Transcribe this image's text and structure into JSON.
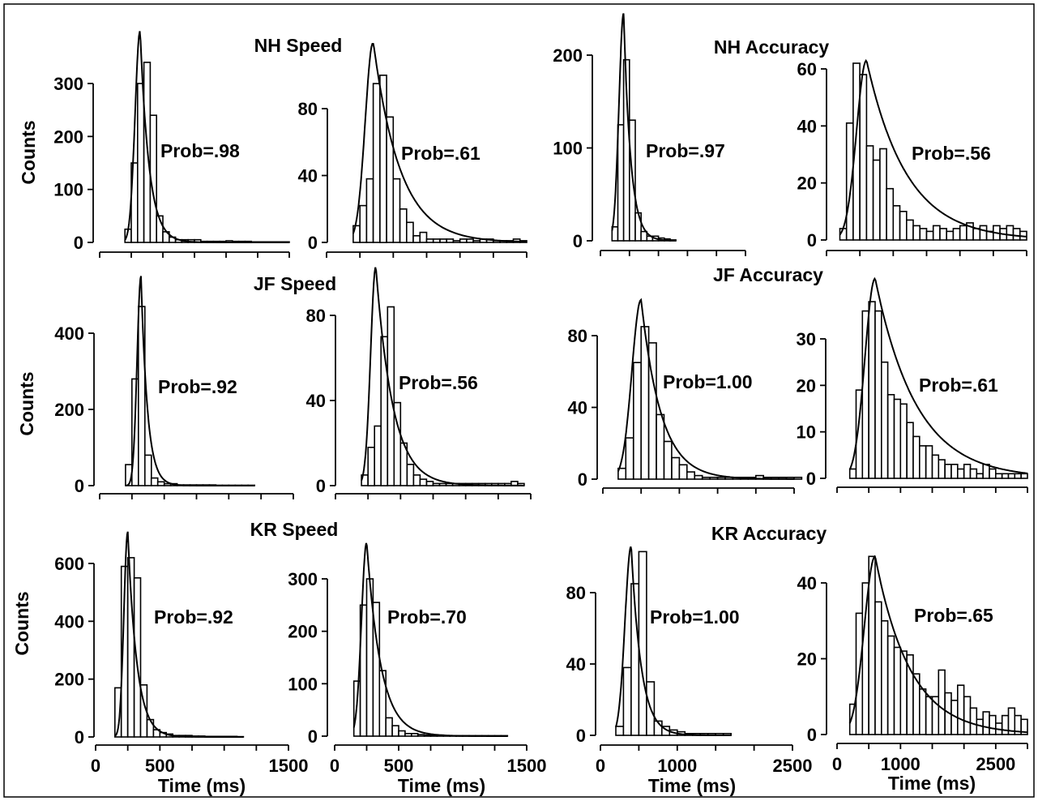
{
  "figure": {
    "group_titles": [
      {
        "id": "nh-speed",
        "text": "NH Speed"
      },
      {
        "id": "nh-accuracy",
        "text": "NH Accuracy"
      },
      {
        "id": "jf-speed",
        "text": "JF Speed"
      },
      {
        "id": "jf-accuracy",
        "text": "JF Accuracy"
      },
      {
        "id": "kr-speed",
        "text": "KR Speed"
      },
      {
        "id": "kr-accuracy",
        "text": "KR Accuracy"
      }
    ],
    "ylabel": "Counts",
    "xlabel": "Time (ms)"
  },
  "chart_data": [
    {
      "id": "nh-speed-1",
      "type": "bar",
      "group": "NH Speed",
      "prob_label": "Prob=.98",
      "xlim": [
        0,
        1500
      ],
      "x_ticks": [],
      "bin_width": 50,
      "bin_start": 200,
      "ylim": [
        0,
        300
      ],
      "y_ticks": [
        0,
        100,
        200,
        300
      ],
      "values": [
        25,
        150,
        300,
        340,
        240,
        50,
        20,
        10,
        5,
        5,
        5,
        5,
        2,
        2,
        2,
        2,
        3,
        2,
        2,
        2,
        1,
        1,
        1,
        1,
        1,
        1
      ],
      "fit": {
        "peak_x": 320,
        "peak_y": 400,
        "rise": 40,
        "decay": 70
      }
    },
    {
      "id": "nh-speed-2",
      "type": "bar",
      "group": "NH Speed",
      "prob_label": "Prob=.61",
      "xlim": [
        0,
        1500
      ],
      "x_ticks": [],
      "bin_width": 50,
      "bin_start": 200,
      "ylim": [
        0,
        80
      ],
      "y_ticks": [
        0,
        40,
        80
      ],
      "values": [
        10,
        22,
        38,
        95,
        100,
        75,
        38,
        20,
        12,
        4,
        6,
        2,
        2,
        2,
        2,
        1,
        2,
        2,
        1,
        2,
        2,
        1,
        1,
        1,
        2,
        1
      ],
      "fit": {
        "peak_x": 350,
        "peak_y": 120,
        "rise": 60,
        "decay": 200
      }
    },
    {
      "id": "nh-accuracy-1",
      "type": "bar",
      "group": "NH Accuracy",
      "prob_label": "Prob=.97",
      "xlim": [
        0,
        2500
      ],
      "x_ticks": [],
      "bin_width": 100,
      "bin_start": 200,
      "ylim": [
        0,
        200
      ],
      "y_ticks": [
        0,
        100,
        200
      ],
      "values": [
        15,
        125,
        195,
        130,
        30,
        10,
        5,
        5,
        3,
        2,
        1
      ],
      "fit": {
        "peak_x": 400,
        "peak_y": 245,
        "rise": 80,
        "decay": 120
      }
    },
    {
      "id": "nh-accuracy-2",
      "type": "bar",
      "group": "NH Accuracy",
      "prob_label": "Prob=.56",
      "xlim": [
        0,
        3000
      ],
      "x_ticks": [],
      "bin_width": 100,
      "bin_start": 200,
      "ylim": [
        0,
        60
      ],
      "y_ticks": [
        0,
        20,
        40,
        60
      ],
      "values": [
        4,
        41,
        62,
        58,
        33,
        28,
        32,
        18,
        12,
        10,
        7,
        5,
        4,
        3,
        5,
        4,
        3,
        4,
        5,
        6,
        4,
        5,
        3,
        5,
        4,
        5,
        4,
        3
      ],
      "fit": {
        "peak_x": 600,
        "peak_y": 63,
        "rise": 150,
        "decay": 600
      }
    },
    {
      "id": "jf-speed-1",
      "type": "bar",
      "group": "JF Speed",
      "prob_label": "Prob=.92",
      "xlim": [
        0,
        1500
      ],
      "x_ticks": [],
      "bin_width": 50,
      "bin_start": 200,
      "ylim": [
        0,
        400
      ],
      "y_ticks": [
        0,
        200,
        400
      ],
      "values": [
        55,
        280,
        470,
        80,
        20,
        10,
        5,
        5,
        2,
        2,
        2,
        2,
        2,
        2,
        1,
        1,
        1,
        1,
        1,
        1
      ],
      "fit": {
        "peak_x": 320,
        "peak_y": 550,
        "rise": 30,
        "decay": 50
      }
    },
    {
      "id": "jf-speed-2",
      "type": "bar",
      "group": "JF Speed",
      "prob_label": "Prob=.56",
      "xlim": [
        0,
        1500
      ],
      "x_ticks": [],
      "bin_width": 50,
      "bin_start": 200,
      "ylim": [
        0,
        80
      ],
      "y_ticks": [
        0,
        40,
        80
      ],
      "values": [
        5,
        18,
        28,
        70,
        84,
        39,
        20,
        10,
        5,
        3,
        2,
        1,
        1,
        1,
        1,
        1,
        1,
        1,
        1,
        1,
        1,
        1,
        1,
        2,
        1
      ],
      "fit": {
        "peak_x": 310,
        "peak_y": 103,
        "rise": 40,
        "decay": 130
      }
    },
    {
      "id": "jf-accuracy-1",
      "type": "bar",
      "group": "JF Accuracy",
      "prob_label": "Prob=1.00",
      "xlim": [
        0,
        2500
      ],
      "x_ticks": [],
      "bin_width": 100,
      "bin_start": 200,
      "ylim": [
        0,
        80
      ],
      "y_ticks": [
        0,
        40,
        80
      ],
      "values": [
        6,
        23,
        65,
        85,
        76,
        36,
        21,
        12,
        8,
        4,
        2,
        1,
        1,
        1,
        1,
        1,
        1,
        1,
        2,
        1,
        1,
        1,
        1,
        1
      ],
      "fit": {
        "peak_x": 500,
        "peak_y": 100,
        "rise": 120,
        "decay": 260
      }
    },
    {
      "id": "jf-accuracy-2",
      "type": "bar",
      "group": "JF Accuracy",
      "prob_label": "Prob=.61",
      "xlim": [
        0,
        3000
      ],
      "x_ticks": [],
      "bin_width": 100,
      "bin_start": 200,
      "ylim": [
        0,
        30
      ],
      "y_ticks": [
        0,
        10,
        20,
        30
      ],
      "values": [
        2,
        19,
        36,
        38,
        36,
        25,
        18,
        17,
        16,
        12,
        9,
        7,
        7,
        5,
        4,
        3,
        3,
        2,
        3,
        2,
        1,
        3,
        2,
        1,
        1,
        1,
        1,
        1
      ],
      "fit": {
        "peak_x": 600,
        "peak_y": 43,
        "rise": 160,
        "decay": 650
      }
    },
    {
      "id": "kr-speed-1",
      "type": "bar",
      "group": "KR Speed",
      "prob_label": "Prob=.92",
      "xlim": [
        0,
        1500
      ],
      "x_ticks": [
        0,
        500,
        1500
      ],
      "bin_width": 50,
      "bin_start": 150,
      "ylim": [
        0,
        600
      ],
      "y_ticks": [
        0,
        200,
        400,
        600
      ],
      "values": [
        170,
        590,
        620,
        550,
        180,
        60,
        25,
        15,
        10,
        5,
        5,
        5,
        3,
        3,
        2,
        2,
        2,
        2,
        2,
        1
      ],
      "fit": {
        "peak_x": 250,
        "peak_y": 710,
        "rise": 30,
        "decay": 70
      }
    },
    {
      "id": "kr-speed-2",
      "type": "bar",
      "group": "KR Speed",
      "prob_label": "Prob=.70",
      "xlim": [
        0,
        1500
      ],
      "x_ticks": [
        0,
        500,
        1500
      ],
      "bin_width": 50,
      "bin_start": 150,
      "ylim": [
        0,
        300
      ],
      "y_ticks": [
        0,
        100,
        200,
        300
      ],
      "values": [
        105,
        250,
        300,
        255,
        125,
        35,
        20,
        10,
        5,
        5,
        3,
        2,
        2,
        2,
        1,
        1,
        1,
        1,
        1,
        1,
        1,
        1,
        1,
        1
      ],
      "fit": {
        "peak_x": 250,
        "peak_y": 370,
        "rise": 40,
        "decay": 110
      }
    },
    {
      "id": "kr-accuracy-1",
      "type": "bar",
      "group": "KR Accuracy",
      "prob_label": "Prob=1.00",
      "xlim": [
        0,
        2500
      ],
      "x_ticks": [
        0,
        1000,
        2500
      ],
      "bin_width": 100,
      "bin_start": 200,
      "ylim": [
        0,
        80
      ],
      "y_ticks": [
        0,
        40,
        80
      ],
      "values": [
        5,
        38,
        85,
        103,
        30,
        8,
        5,
        3,
        2,
        1,
        1,
        1,
        1,
        1,
        1
      ],
      "fit": {
        "peak_x": 400,
        "peak_y": 106,
        "rise": 80,
        "decay": 130
      }
    },
    {
      "id": "kr-accuracy-2",
      "type": "bar",
      "group": "KR Accuracy",
      "prob_label": "Prob=.65",
      "xlim": [
        0,
        3000
      ],
      "x_ticks": [
        0,
        1000,
        2500
      ],
      "bin_width": 100,
      "bin_start": 200,
      "ylim": [
        0,
        40
      ],
      "y_ticks": [
        0,
        20,
        40
      ],
      "values": [
        8,
        32,
        40,
        47,
        35,
        30,
        26,
        23,
        22,
        21,
        16,
        12,
        10,
        10,
        17,
        11,
        9,
        13,
        10,
        7,
        4,
        6,
        5,
        3,
        5,
        7,
        5,
        4
      ],
      "fit": {
        "peak_x": 600,
        "peak_y": 47,
        "rise": 170,
        "decay": 550
      }
    }
  ]
}
